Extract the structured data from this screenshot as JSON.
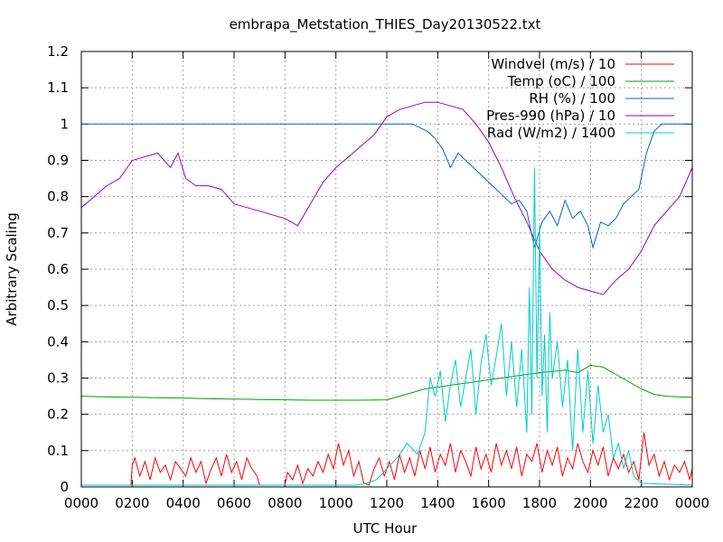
{
  "chart_data": {
    "type": "line",
    "title": "embrapa_Metstation_THIES_Day20130522.txt",
    "xlabel": "UTC Hour",
    "ylabel": "Arbitrary Scaling",
    "xlim": [
      0,
      24
    ],
    "ylim": [
      0,
      1.2
    ],
    "grid": true,
    "legend_position": "top-right",
    "x_ticks": [
      {
        "value": 0,
        "label": "0000"
      },
      {
        "value": 2,
        "label": "0200"
      },
      {
        "value": 4,
        "label": "0400"
      },
      {
        "value": 6,
        "label": "0600"
      },
      {
        "value": 8,
        "label": "0800"
      },
      {
        "value": 10,
        "label": "1000"
      },
      {
        "value": 12,
        "label": "1200"
      },
      {
        "value": 14,
        "label": "1400"
      },
      {
        "value": 16,
        "label": "1600"
      },
      {
        "value": 18,
        "label": "1800"
      },
      {
        "value": 20,
        "label": "2000"
      },
      {
        "value": 22,
        "label": "2200"
      },
      {
        "value": 24,
        "label": "0000"
      }
    ],
    "y_ticks": [
      {
        "value": 0,
        "label": "0"
      },
      {
        "value": 0.1,
        "label": "0.1"
      },
      {
        "value": 0.2,
        "label": "0.2"
      },
      {
        "value": 0.3,
        "label": "0.3"
      },
      {
        "value": 0.4,
        "label": "0.4"
      },
      {
        "value": 0.5,
        "label": "0.5"
      },
      {
        "value": 0.6,
        "label": "0.6"
      },
      {
        "value": 0.7,
        "label": "0.7"
      },
      {
        "value": 0.8,
        "label": "0.8"
      },
      {
        "value": 0.9,
        "label": "0.9"
      },
      {
        "value": 1.0,
        "label": "1"
      },
      {
        "value": 1.1,
        "label": "1.1"
      },
      {
        "value": 1.2,
        "label": "1.2"
      }
    ],
    "series": [
      {
        "name": "Windvel (m/s) / 10",
        "color": "#ff0000",
        "x": [
          0,
          1.95,
          2.0,
          2.1,
          2.3,
          2.5,
          2.7,
          2.9,
          3.1,
          3.3,
          3.5,
          3.7,
          3.9,
          4.1,
          4.3,
          4.5,
          4.7,
          4.9,
          5.1,
          5.3,
          5.5,
          5.7,
          5.9,
          6.1,
          6.3,
          6.5,
          6.7,
          6.9,
          7.0,
          8.0,
          8.1,
          8.3,
          8.5,
          8.7,
          8.9,
          9.1,
          9.3,
          9.5,
          9.7,
          9.9,
          10.1,
          10.3,
          10.5,
          10.7,
          10.9,
          11.1,
          11.3,
          11.5,
          11.7,
          11.9,
          12.1,
          12.3,
          12.5,
          12.7,
          12.9,
          13.1,
          13.3,
          13.5,
          13.7,
          13.9,
          14.1,
          14.3,
          14.5,
          14.7,
          14.9,
          15.1,
          15.3,
          15.5,
          15.7,
          15.9,
          16.1,
          16.3,
          16.5,
          16.7,
          16.9,
          17.1,
          17.3,
          17.5,
          17.7,
          17.9,
          18.1,
          18.3,
          18.5,
          18.7,
          18.9,
          19.1,
          19.3,
          19.5,
          19.7,
          19.9,
          20.1,
          20.3,
          20.5,
          20.7,
          20.9,
          21.1,
          21.3,
          21.5,
          21.7,
          21.9,
          22.1,
          22.3,
          22.5,
          22.7,
          22.9,
          23.1,
          23.3,
          23.5,
          23.7,
          23.9,
          24.0
        ],
        "values": [
          0.005,
          0.005,
          0.06,
          0.08,
          0.03,
          0.07,
          0.02,
          0.08,
          0.04,
          0.06,
          0.02,
          0.07,
          0.05,
          0.03,
          0.08,
          0.04,
          0.07,
          0.01,
          0.05,
          0.08,
          0.03,
          0.09,
          0.04,
          0.07,
          0.02,
          0.08,
          0.05,
          0.03,
          0.005,
          0.005,
          0.04,
          0.02,
          0.06,
          0.01,
          0.05,
          0.03,
          0.07,
          0.04,
          0.09,
          0.05,
          0.12,
          0.06,
          0.1,
          0.03,
          0.07,
          0.01,
          0.005,
          0.05,
          0.08,
          0.03,
          0.07,
          0.02,
          0.09,
          0.04,
          0.08,
          0.03,
          0.1,
          0.05,
          0.11,
          0.04,
          0.09,
          0.06,
          0.12,
          0.04,
          0.1,
          0.07,
          0.03,
          0.11,
          0.05,
          0.09,
          0.04,
          0.12,
          0.06,
          0.1,
          0.05,
          0.11,
          0.03,
          0.09,
          0.07,
          0.12,
          0.04,
          0.1,
          0.06,
          0.11,
          0.03,
          0.08,
          0.05,
          0.12,
          0.07,
          0.04,
          0.1,
          0.06,
          0.11,
          0.03,
          0.08,
          0.05,
          0.09,
          0.04,
          0.07,
          0.02,
          0.15,
          0.06,
          0.09,
          0.03,
          0.07,
          0.02,
          0.06,
          0.04,
          0.07,
          0.02,
          0.05
        ]
      },
      {
        "name": "Temp (oC) / 100",
        "color": "#00a000",
        "x": [
          0,
          1,
          2,
          3,
          4,
          5,
          6,
          7,
          8,
          9,
          10,
          11,
          12,
          12.5,
          13,
          13.5,
          14,
          14.5,
          15,
          15.5,
          16,
          16.5,
          17,
          17.5,
          18,
          18.5,
          19,
          19.5,
          20,
          20.5,
          21,
          21.5,
          22,
          22.5,
          23,
          23.5,
          24
        ],
        "values": [
          0.25,
          0.248,
          0.247,
          0.246,
          0.245,
          0.243,
          0.242,
          0.241,
          0.24,
          0.239,
          0.239,
          0.239,
          0.24,
          0.25,
          0.26,
          0.27,
          0.275,
          0.28,
          0.285,
          0.29,
          0.295,
          0.3,
          0.305,
          0.31,
          0.315,
          0.318,
          0.322,
          0.315,
          0.335,
          0.33,
          0.31,
          0.29,
          0.27,
          0.255,
          0.25,
          0.248,
          0.247
        ]
      },
      {
        "name": "RH (%) / 100",
        "color": "#0066cc",
        "x": [
          0,
          12,
          13.0,
          13.3,
          13.6,
          13.9,
          14.2,
          14.5,
          14.8,
          15.1,
          15.4,
          15.7,
          16.0,
          16.3,
          16.6,
          16.9,
          17.2,
          17.5,
          17.8,
          18.1,
          18.4,
          18.7,
          19.0,
          19.3,
          19.6,
          19.9,
          20.1,
          20.4,
          20.7,
          21.0,
          21.3,
          21.6,
          21.9,
          22.2,
          22.5,
          22.8,
          23.1,
          24
        ],
        "values": [
          1.0,
          1.0,
          1.0,
          0.99,
          0.98,
          0.96,
          0.93,
          0.88,
          0.92,
          0.9,
          0.88,
          0.86,
          0.84,
          0.82,
          0.8,
          0.78,
          0.79,
          0.76,
          0.66,
          0.73,
          0.76,
          0.72,
          0.79,
          0.74,
          0.76,
          0.72,
          0.66,
          0.73,
          0.72,
          0.74,
          0.78,
          0.8,
          0.82,
          0.92,
          0.98,
          1.0,
          1.0,
          1.0
        ]
      },
      {
        "name": "Pres-990 (hPa) / 10",
        "color": "#9900cc",
        "x": [
          0,
          0.5,
          1,
          1.5,
          2,
          2.5,
          3,
          3.5,
          3.8,
          4.1,
          4.5,
          5,
          5.5,
          6,
          6.5,
          7,
          7.5,
          8,
          8.5,
          9,
          9.5,
          10,
          10.5,
          11,
          11.5,
          12,
          12.5,
          13,
          13.5,
          14,
          14.5,
          15,
          15.5,
          16,
          16.5,
          17,
          17.5,
          18,
          18.5,
          19,
          19.5,
          20,
          20.5,
          21,
          21.5,
          22,
          22.5,
          23,
          23.5,
          24
        ],
        "values": [
          0.77,
          0.8,
          0.83,
          0.85,
          0.9,
          0.91,
          0.92,
          0.88,
          0.92,
          0.85,
          0.83,
          0.83,
          0.82,
          0.78,
          0.77,
          0.76,
          0.75,
          0.74,
          0.72,
          0.78,
          0.84,
          0.88,
          0.91,
          0.94,
          0.97,
          1.02,
          1.04,
          1.05,
          1.06,
          1.06,
          1.05,
          1.04,
          1.0,
          0.95,
          0.88,
          0.8,
          0.73,
          0.65,
          0.6,
          0.57,
          0.55,
          0.54,
          0.53,
          0.57,
          0.6,
          0.65,
          0.72,
          0.76,
          0.8,
          0.88
        ]
      },
      {
        "name": "Rad (W/m2) / 1400",
        "color": "#00cccc",
        "x": [
          0,
          10.8,
          11.2,
          11.6,
          12.0,
          12.4,
          12.8,
          13.2,
          13.5,
          13.7,
          13.9,
          14.1,
          14.3,
          14.5,
          14.7,
          14.9,
          15.1,
          15.3,
          15.5,
          15.7,
          15.9,
          16.1,
          16.3,
          16.5,
          16.7,
          16.9,
          17.1,
          17.3,
          17.5,
          17.6,
          17.7,
          17.8,
          17.9,
          18.0,
          18.1,
          18.2,
          18.3,
          18.4,
          18.5,
          18.7,
          18.9,
          19.1,
          19.3,
          19.5,
          19.7,
          19.9,
          20.1,
          20.3,
          20.5,
          20.7,
          20.9,
          21.1,
          21.3,
          21.5,
          21.7,
          22.0,
          24
        ],
        "values": [
          0.005,
          0.005,
          0.01,
          0.02,
          0.05,
          0.08,
          0.12,
          0.09,
          0.15,
          0.3,
          0.25,
          0.32,
          0.18,
          0.28,
          0.35,
          0.22,
          0.3,
          0.38,
          0.2,
          0.34,
          0.42,
          0.28,
          0.36,
          0.45,
          0.25,
          0.4,
          0.22,
          0.38,
          0.15,
          0.55,
          0.2,
          0.88,
          0.3,
          0.72,
          0.25,
          0.42,
          0.15,
          0.48,
          0.3,
          0.4,
          0.22,
          0.35,
          0.1,
          0.38,
          0.15,
          0.32,
          0.12,
          0.28,
          0.15,
          0.2,
          0.08,
          0.12,
          0.05,
          0.1,
          0.03,
          0.01,
          0.005
        ]
      }
    ]
  }
}
